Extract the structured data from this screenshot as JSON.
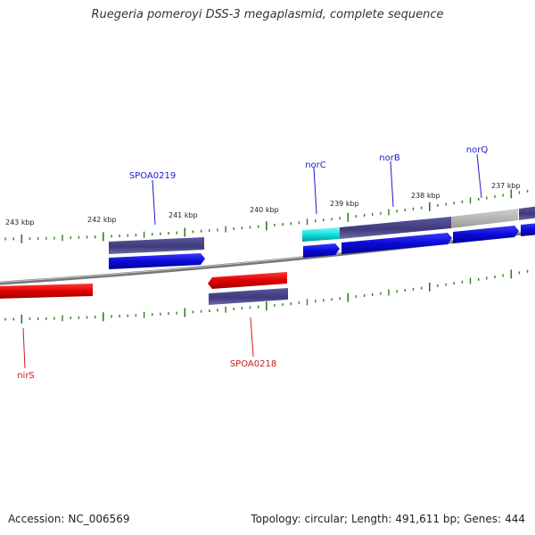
{
  "title": "Ruegeria pomeroyi DSS-3 megaplasmid, complete sequence",
  "footer": {
    "accession_label": "Accession:",
    "accession": "NC_006569",
    "topology_label": "Topology:",
    "topology": "circular;",
    "length_label": "Length:",
    "length": "491,611 bp;",
    "genes_label": "Genes:",
    "genes": "444"
  },
  "scale_labels": [
    "243 kbp",
    "242 kbp",
    "241 kbp",
    "240 kbp",
    "239 kbp",
    "238 kbp",
    "237 kbp"
  ],
  "gene_labels": {
    "SPOA0219": "SPOA0219",
    "norC": "norC",
    "norB": "norB",
    "norQ": "norQ",
    "nirS": "nirS",
    "SPOA0218": "SPOA0218"
  },
  "colors": {
    "forward_label": "#1a1acc",
    "reverse_label": "#cc1a1a",
    "backbone": "#8a8a8a",
    "tick": "#2e7d1e",
    "cds_forward": "#0a0ad6",
    "cds_reverse": "#e00000",
    "gene_bar": "#3e3a7a",
    "gene_bar_gray": "#b4b4b4",
    "cds_cyan": "#11dede"
  }
}
